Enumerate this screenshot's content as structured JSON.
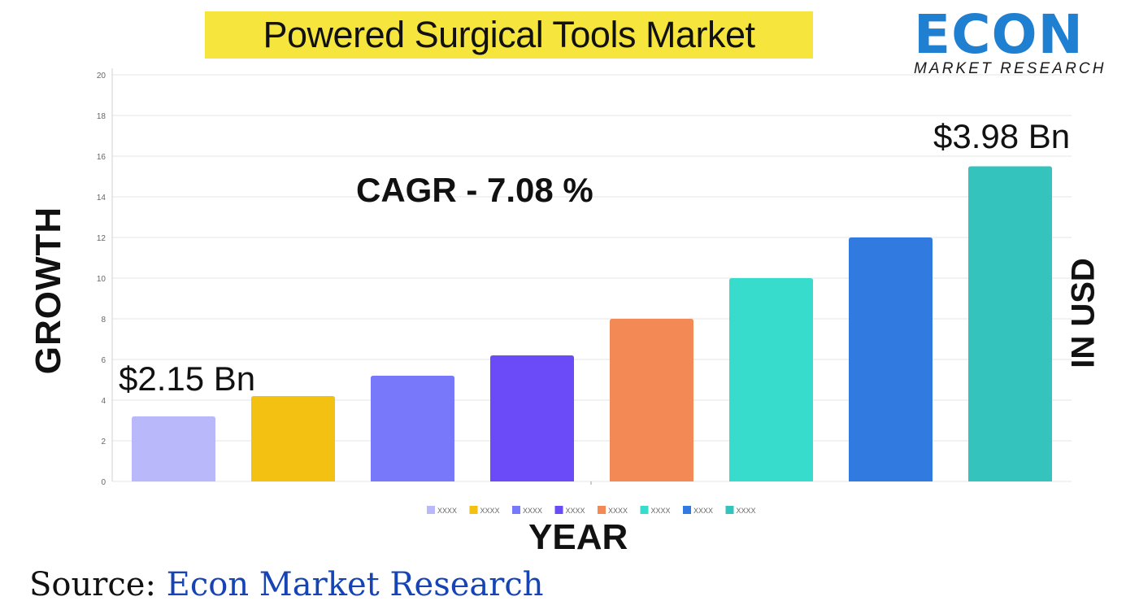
{
  "header": {
    "title": "Powered Surgical Tools Market",
    "logo_word": "ECON",
    "logo_subtitle": "MARKET RESEARCH"
  },
  "labels": {
    "y_left": "GROWTH",
    "y_right": "IN USD",
    "x": "YEAR",
    "cagr": "CAGR  - 7.08 %",
    "start_value": "$2.15 Bn",
    "end_value": "$3.98 Bn"
  },
  "footer": {
    "source_prefix": "Source:",
    "source_name": "Econ Market Research"
  },
  "colors": {
    "title_bg": "#f6e53c",
    "logo_blue": "#1f7fd0",
    "source_blue": "#1744b5"
  },
  "chart_data": {
    "type": "bar",
    "title": "Powered Surgical Tools Market",
    "xlabel": "YEAR",
    "ylabel": "GROWTH",
    "ylim": [
      0,
      20
    ],
    "yticks": [
      0,
      2,
      4,
      6,
      8,
      10,
      12,
      14,
      16,
      18,
      20
    ],
    "grid": true,
    "legend_position": "bottom-center",
    "series": [
      {
        "name": "XXXX",
        "value": 3.2,
        "color": "#b8b8fb"
      },
      {
        "name": "XXXX",
        "value": 4.2,
        "color": "#f3c111"
      },
      {
        "name": "XXXX",
        "value": 5.2,
        "color": "#7878fb"
      },
      {
        "name": "XXXX",
        "value": 6.2,
        "color": "#6b4af8"
      },
      {
        "name": "XXXX",
        "value": 8.0,
        "color": "#f38a55"
      },
      {
        "name": "XXXX",
        "value": 10.0,
        "color": "#38dccc"
      },
      {
        "name": "XXXX",
        "value": 12.0,
        "color": "#317ae0"
      },
      {
        "name": "XXXX",
        "value": 15.5,
        "color": "#35c3bd"
      }
    ]
  }
}
